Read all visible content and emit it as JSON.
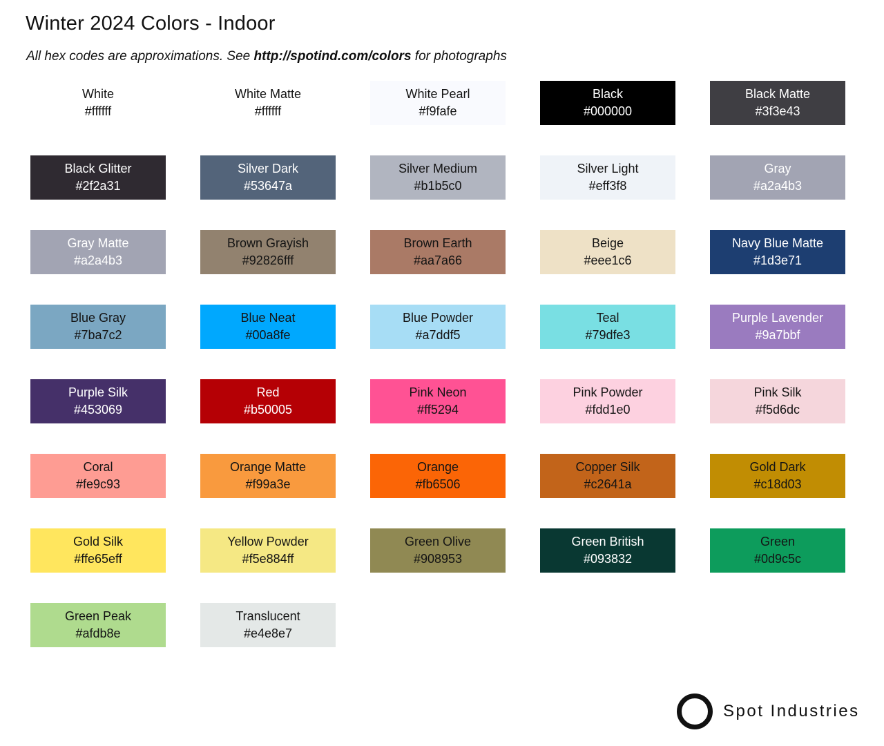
{
  "header": {
    "title": "Winter 2024 Colors - Indoor",
    "subtitle_prefix": "All hex codes are approximations. See ",
    "subtitle_link": "http://spotind.com/colors",
    "subtitle_suffix": " for photographs"
  },
  "palette": {
    "columns": 5,
    "swatches": [
      {
        "name": "White",
        "hex": "#ffffff",
        "text": "dark"
      },
      {
        "name": "White Matte",
        "hex": "#ffffff",
        "text": "dark"
      },
      {
        "name": "White Pearl",
        "hex": "#f9fafe",
        "text": "dark"
      },
      {
        "name": "Black",
        "hex": "#000000",
        "text": "light"
      },
      {
        "name": "Black Matte",
        "hex": "#3f3e43",
        "text": "light"
      },
      {
        "name": "Black Glitter",
        "hex": "#2f2a31",
        "text": "light",
        "texture": "glitter"
      },
      {
        "name": "Silver Dark",
        "hex": "#53647a",
        "text": "light"
      },
      {
        "name": "Silver Medium",
        "hex": "#b1b5c0",
        "text": "dark"
      },
      {
        "name": "Silver Light",
        "hex": "#eff3f8",
        "text": "dark"
      },
      {
        "name": "Gray",
        "hex": "#a2a4b3",
        "text": "light"
      },
      {
        "name": "Gray Matte",
        "hex": "#a2a4b3",
        "text": "light"
      },
      {
        "name": "Brown Grayish",
        "hex": "#92826fff",
        "text": "dark"
      },
      {
        "name": "Brown Earth",
        "hex": "#aa7a66",
        "text": "dark"
      },
      {
        "name": "Beige",
        "hex": "#eee1c6",
        "text": "dark"
      },
      {
        "name": "Navy Blue Matte",
        "hex": "#1d3e71",
        "text": "light"
      },
      {
        "name": "Blue Gray",
        "hex": "#7ba7c2",
        "text": "dark"
      },
      {
        "name": "Blue Neat",
        "hex": "#00a8fe",
        "text": "dark"
      },
      {
        "name": "Blue Powder",
        "hex": "#a7ddf5",
        "text": "dark"
      },
      {
        "name": "Teal",
        "hex": "#79dfe3",
        "text": "dark"
      },
      {
        "name": "Purple Lavender",
        "hex": "#9a7bbf",
        "text": "light"
      },
      {
        "name": "Purple Silk",
        "hex": "#453069",
        "text": "light"
      },
      {
        "name": "Red",
        "hex": "#b50005",
        "text": "light"
      },
      {
        "name": "Pink Neon",
        "hex": "#ff5294",
        "text": "dark"
      },
      {
        "name": "Pink Powder",
        "hex": "#fdd1e0",
        "text": "dark"
      },
      {
        "name": "Pink Silk",
        "hex": "#f5d6dc",
        "text": "dark"
      },
      {
        "name": "Coral",
        "hex": "#fe9c93",
        "text": "dark"
      },
      {
        "name": "Orange Matte",
        "hex": "#f99a3e",
        "text": "dark"
      },
      {
        "name": "Orange",
        "hex": "#fb6506",
        "text": "dark"
      },
      {
        "name": "Copper Silk",
        "hex": "#c2641a",
        "text": "dark"
      },
      {
        "name": "Gold Dark",
        "hex": "#c18d03",
        "text": "dark"
      },
      {
        "name": "Gold Silk",
        "hex": "#ffe65eff",
        "text": "dark"
      },
      {
        "name": "Yellow Powder",
        "hex": "#f5e884ff",
        "text": "dark"
      },
      {
        "name": "Green Olive",
        "hex": "#908953",
        "text": "dark"
      },
      {
        "name": "Green British",
        "hex": "#093832",
        "text": "light"
      },
      {
        "name": "Green",
        "hex": "#0d9c5c",
        "text": "dark"
      },
      {
        "name": "Green Peak",
        "hex": "#afdb8e",
        "text": "dark"
      },
      {
        "name": "Translucent",
        "hex": "#e4e8e7",
        "text": "dark"
      }
    ]
  },
  "footer": {
    "brand": "Spot Industries",
    "logo_icon": "circle-outline",
    "logo_color": "#111111"
  }
}
